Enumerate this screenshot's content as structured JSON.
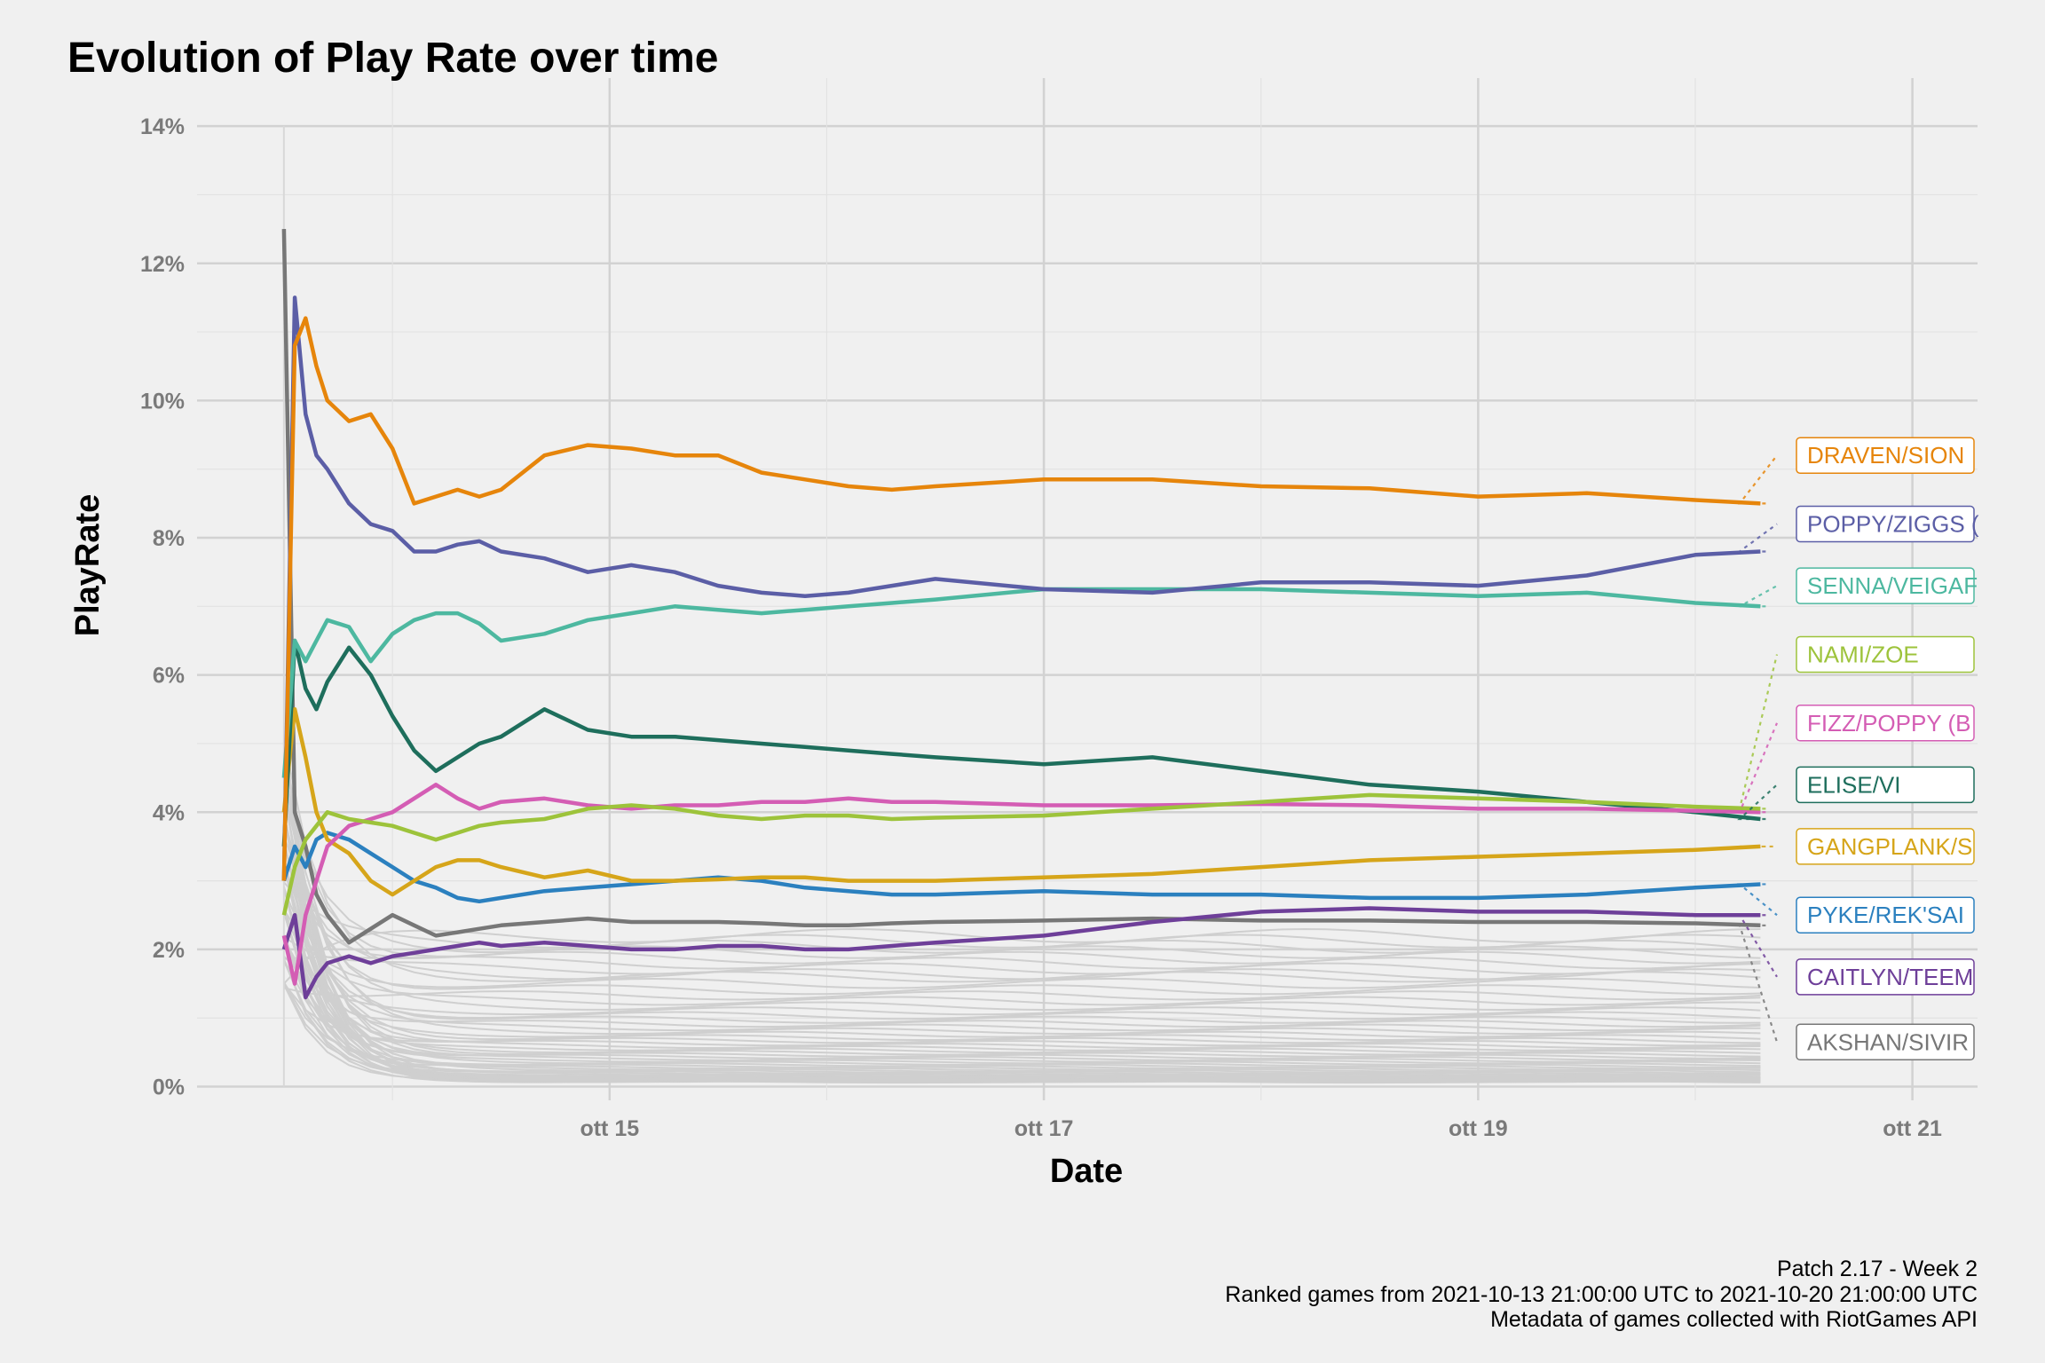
{
  "chart_data": {
    "type": "line",
    "title": "Evolution of Play Rate over time",
    "xlabel": "Date",
    "ylabel": "PlayRate",
    "x_ticks": [
      "ott 15",
      "ott 17",
      "ott 19",
      "ott 21"
    ],
    "x_tick_values": [
      1.5,
      3.5,
      5.5,
      7.5
    ],
    "y_ticks": [
      "0%",
      "2%",
      "4%",
      "6%",
      "8%",
      "10%",
      "12%",
      "14%"
    ],
    "y_tick_values": [
      0,
      2,
      4,
      6,
      8,
      10,
      12,
      14
    ],
    "x_range_days": [
      -0.4,
      7.8
    ],
    "x_end_days": 6.8,
    "ylim": [
      -0.2,
      14.7
    ],
    "grid": true,
    "legend": "direct-labels-right",
    "caption": [
      "Patch 2.17 - Week 2",
      "Ranked games from 2021-10-13 21:00:00 UTC to 2021-10-20 21:00:00 UTC",
      "Metadata of games collected with RiotGames API"
    ],
    "series": [
      {
        "name": "DRAVEN/SION",
        "color": "#E6850B",
        "label_y": 9.2,
        "x": [
          0.0,
          0.05,
          0.1,
          0.15,
          0.2,
          0.3,
          0.4,
          0.5,
          0.6,
          0.7,
          0.8,
          0.9,
          1.0,
          1.2,
          1.4,
          1.6,
          1.8,
          2.0,
          2.2,
          2.4,
          2.6,
          2.8,
          3.0,
          3.5,
          4.0,
          4.5,
          5.0,
          5.5,
          6.0,
          6.5,
          6.8
        ],
        "y": [
          3.0,
          10.8,
          11.2,
          10.5,
          10.0,
          9.7,
          9.8,
          9.3,
          8.5,
          8.6,
          8.7,
          8.6,
          8.7,
          9.2,
          9.35,
          9.3,
          9.2,
          9.2,
          8.95,
          8.85,
          8.75,
          8.7,
          8.75,
          8.85,
          8.85,
          8.75,
          8.72,
          8.6,
          8.65,
          8.55,
          8.5
        ]
      },
      {
        "name": "POPPY/ZIGGS (",
        "color": "#5B5EA6",
        "label_y": 8.2,
        "x": [
          0.0,
          0.05,
          0.1,
          0.15,
          0.2,
          0.3,
          0.4,
          0.5,
          0.6,
          0.7,
          0.8,
          0.9,
          1.0,
          1.2,
          1.4,
          1.6,
          1.8,
          2.0,
          2.2,
          2.4,
          2.6,
          2.8,
          3.0,
          3.5,
          4.0,
          4.5,
          5.0,
          5.5,
          6.0,
          6.5,
          6.8
        ],
        "y": [
          3.0,
          11.5,
          9.8,
          9.2,
          9.0,
          8.5,
          8.2,
          8.1,
          7.8,
          7.8,
          7.9,
          7.95,
          7.8,
          7.7,
          7.5,
          7.6,
          7.5,
          7.3,
          7.2,
          7.15,
          7.2,
          7.3,
          7.4,
          7.25,
          7.2,
          7.35,
          7.35,
          7.3,
          7.45,
          7.75,
          7.8
        ]
      },
      {
        "name": "SENNA/VEIGAF",
        "color": "#4DB8A0",
        "label_y": 7.3,
        "x": [
          0.0,
          0.05,
          0.1,
          0.15,
          0.2,
          0.3,
          0.4,
          0.5,
          0.6,
          0.7,
          0.8,
          0.9,
          1.0,
          1.2,
          1.4,
          1.6,
          1.8,
          2.0,
          2.2,
          2.4,
          2.6,
          2.8,
          3.0,
          3.5,
          4.0,
          4.5,
          5.0,
          5.5,
          6.0,
          6.5,
          6.8
        ],
        "y": [
          4.5,
          6.5,
          6.2,
          6.5,
          6.8,
          6.7,
          6.2,
          6.6,
          6.8,
          6.9,
          6.9,
          6.75,
          6.5,
          6.6,
          6.8,
          6.9,
          7.0,
          6.95,
          6.9,
          6.95,
          7.0,
          7.05,
          7.1,
          7.25,
          7.25,
          7.25,
          7.2,
          7.15,
          7.2,
          7.05,
          7.0
        ]
      },
      {
        "name": "NAMI/ZOE",
        "color": "#9DC33B",
        "label_y": 6.3,
        "x": [
          0.0,
          0.05,
          0.1,
          0.15,
          0.2,
          0.3,
          0.4,
          0.5,
          0.6,
          0.7,
          0.8,
          0.9,
          1.0,
          1.2,
          1.4,
          1.6,
          1.8,
          2.0,
          2.2,
          2.4,
          2.6,
          2.8,
          3.0,
          3.5,
          4.0,
          4.5,
          5.0,
          5.5,
          6.0,
          6.5,
          6.8
        ],
        "y": [
          2.5,
          3.2,
          3.6,
          3.8,
          4.0,
          3.9,
          3.85,
          3.8,
          3.7,
          3.6,
          3.7,
          3.8,
          3.85,
          3.9,
          4.05,
          4.1,
          4.05,
          3.95,
          3.9,
          3.95,
          3.95,
          3.9,
          3.92,
          3.95,
          4.05,
          4.15,
          4.25,
          4.2,
          4.15,
          4.08,
          4.05
        ]
      },
      {
        "name": "FIZZ/POPPY (B",
        "color": "#D45DB4",
        "label_y": 5.3,
        "x": [
          0.0,
          0.05,
          0.1,
          0.15,
          0.2,
          0.3,
          0.4,
          0.5,
          0.6,
          0.7,
          0.8,
          0.9,
          1.0,
          1.2,
          1.4,
          1.6,
          1.8,
          2.0,
          2.2,
          2.4,
          2.6,
          2.8,
          3.0,
          3.5,
          4.0,
          4.5,
          5.0,
          5.5,
          6.0,
          6.5,
          6.8
        ],
        "y": [
          2.2,
          1.5,
          2.5,
          3.0,
          3.5,
          3.8,
          3.9,
          4.0,
          4.2,
          4.4,
          4.2,
          4.05,
          4.15,
          4.2,
          4.1,
          4.05,
          4.1,
          4.1,
          4.15,
          4.15,
          4.2,
          4.15,
          4.15,
          4.1,
          4.1,
          4.12,
          4.1,
          4.05,
          4.05,
          4.02,
          4.0
        ]
      },
      {
        "name": "ELISE/VI",
        "color": "#1E6E5C",
        "label_y": 4.4,
        "x": [
          0.0,
          0.05,
          0.1,
          0.15,
          0.2,
          0.3,
          0.4,
          0.5,
          0.6,
          0.7,
          0.8,
          0.9,
          1.0,
          1.2,
          1.4,
          1.6,
          1.8,
          2.0,
          2.2,
          2.4,
          2.6,
          2.8,
          3.0,
          3.5,
          4.0,
          4.5,
          5.0,
          5.5,
          6.0,
          6.5,
          6.8
        ],
        "y": [
          3.5,
          6.5,
          5.8,
          5.5,
          5.9,
          6.4,
          6.0,
          5.4,
          4.9,
          4.6,
          4.8,
          5.0,
          5.1,
          5.5,
          5.2,
          5.1,
          5.1,
          5.05,
          5.0,
          4.95,
          4.9,
          4.85,
          4.8,
          4.7,
          4.8,
          4.6,
          4.4,
          4.3,
          4.15,
          4.0,
          3.9
        ]
      },
      {
        "name": "GANGPLANK/S",
        "color": "#D6A51A",
        "label_y": 3.5,
        "x": [
          0.0,
          0.05,
          0.1,
          0.15,
          0.2,
          0.3,
          0.4,
          0.5,
          0.6,
          0.7,
          0.8,
          0.9,
          1.0,
          1.2,
          1.4,
          1.6,
          1.8,
          2.0,
          2.2,
          2.4,
          2.6,
          2.8,
          3.0,
          3.5,
          4.0,
          4.5,
          5.0,
          5.5,
          6.0,
          6.5,
          6.8
        ],
        "y": [
          4.0,
          5.5,
          4.8,
          4.0,
          3.6,
          3.4,
          3.0,
          2.8,
          3.0,
          3.2,
          3.3,
          3.3,
          3.2,
          3.05,
          3.15,
          3.0,
          3.0,
          3.02,
          3.05,
          3.05,
          3.0,
          3.0,
          3.0,
          3.05,
          3.1,
          3.2,
          3.3,
          3.35,
          3.4,
          3.45,
          3.5
        ]
      },
      {
        "name": "PYKE/REK'SAI",
        "color": "#2B80BF",
        "label_y": 2.5,
        "x": [
          0.0,
          0.05,
          0.1,
          0.15,
          0.2,
          0.3,
          0.4,
          0.5,
          0.6,
          0.7,
          0.8,
          0.9,
          1.0,
          1.2,
          1.4,
          1.6,
          1.8,
          2.0,
          2.2,
          2.4,
          2.6,
          2.8,
          3.0,
          3.5,
          4.0,
          4.5,
          5.0,
          5.5,
          6.0,
          6.5,
          6.8
        ],
        "y": [
          3.0,
          3.5,
          3.2,
          3.6,
          3.7,
          3.6,
          3.4,
          3.2,
          3.0,
          2.9,
          2.75,
          2.7,
          2.75,
          2.85,
          2.9,
          2.95,
          3.0,
          3.05,
          3.0,
          2.9,
          2.85,
          2.8,
          2.8,
          2.85,
          2.8,
          2.8,
          2.75,
          2.75,
          2.8,
          2.9,
          2.95
        ]
      },
      {
        "name": "CAITLYN/TEEM",
        "color": "#6E3F99",
        "label_y": 1.6,
        "x": [
          0.0,
          0.05,
          0.1,
          0.15,
          0.2,
          0.3,
          0.4,
          0.5,
          0.6,
          0.7,
          0.8,
          0.9,
          1.0,
          1.2,
          1.4,
          1.6,
          1.8,
          2.0,
          2.2,
          2.4,
          2.6,
          2.8,
          3.0,
          3.5,
          4.0,
          4.5,
          5.0,
          5.5,
          6.0,
          6.5,
          6.8
        ],
        "y": [
          2.0,
          2.5,
          1.3,
          1.6,
          1.8,
          1.9,
          1.8,
          1.9,
          1.95,
          2.0,
          2.05,
          2.1,
          2.05,
          2.1,
          2.05,
          2.0,
          2.0,
          2.05,
          2.05,
          2.0,
          2.0,
          2.05,
          2.1,
          2.2,
          2.4,
          2.55,
          2.6,
          2.55,
          2.55,
          2.5,
          2.5
        ]
      },
      {
        "name": "AKSHAN/SIVIR",
        "color": "#777777",
        "label_y": 0.65,
        "x": [
          0.0,
          0.05,
          0.1,
          0.15,
          0.2,
          0.3,
          0.4,
          0.5,
          0.6,
          0.7,
          0.8,
          0.9,
          1.0,
          1.2,
          1.4,
          1.6,
          1.8,
          2.0,
          2.2,
          2.4,
          2.6,
          2.8,
          3.0,
          3.5,
          4.0,
          4.5,
          5.0,
          5.5,
          6.0,
          6.5,
          6.8
        ],
        "y": [
          12.5,
          4.0,
          3.5,
          2.8,
          2.5,
          2.1,
          2.3,
          2.5,
          2.35,
          2.2,
          2.25,
          2.3,
          2.35,
          2.4,
          2.45,
          2.4,
          2.4,
          2.4,
          2.38,
          2.35,
          2.35,
          2.38,
          2.4,
          2.42,
          2.45,
          2.42,
          2.42,
          2.4,
          2.4,
          2.38,
          2.35
        ]
      }
    ]
  }
}
